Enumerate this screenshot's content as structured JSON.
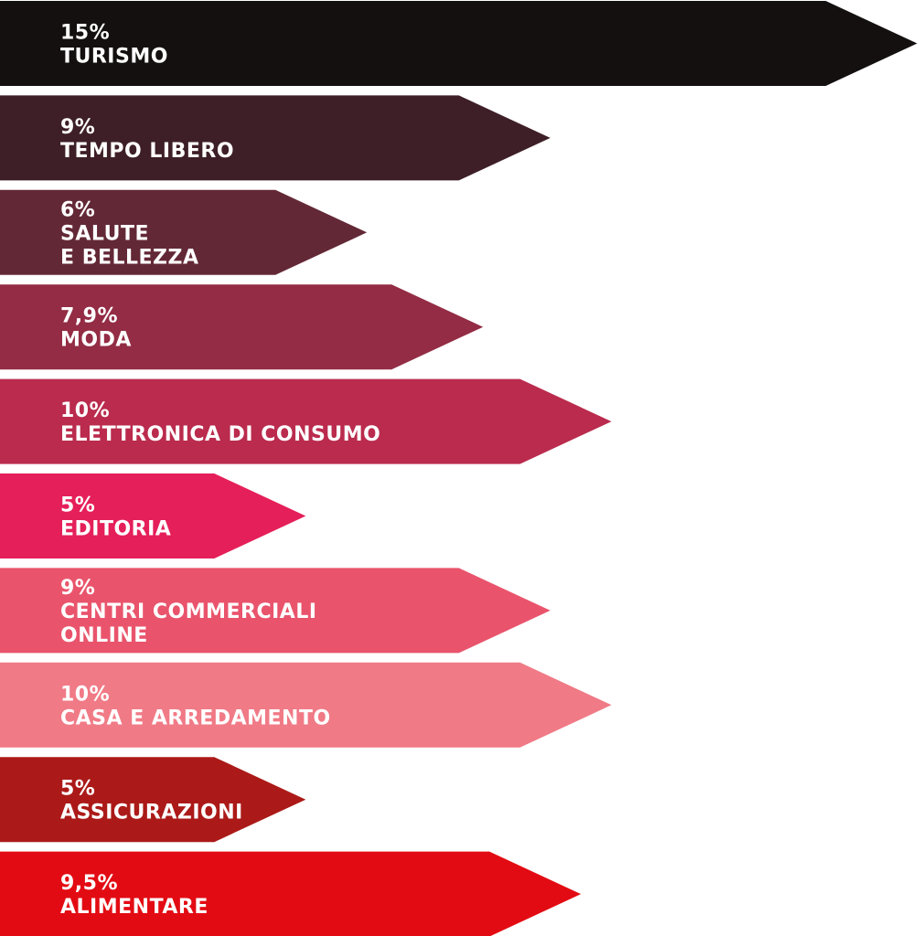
{
  "chart_data": {
    "type": "bar",
    "orientation": "horizontal",
    "categories": [
      "TURISMO",
      "TEMPO LIBERO",
      "SALUTE\nE BELLEZZA",
      "MODA",
      "ELETTRONICA DI CONSUMO",
      "EDITORIA",
      "CENTRI COMMERCIALI\nONLINE",
      "CASA E ARREDAMENTO",
      "ASSICURAZIONI",
      "ALIMENTARE"
    ],
    "values": [
      15,
      9,
      6,
      7.9,
      10,
      5,
      9,
      10,
      5,
      9.5
    ],
    "value_labels": [
      "15%",
      "9%",
      "6%",
      "7,9%",
      "10%",
      "5%",
      "9%",
      "10%",
      "5%",
      "9,5%"
    ],
    "colors": [
      "#141010",
      "#3e1f27",
      "#632836",
      "#932c44",
      "#ba2b4d",
      "#e51f59",
      "#e9546c",
      "#f07a86",
      "#ab1a18",
      "#e30b13"
    ],
    "unit": "%",
    "bar_shape": "arrow",
    "legend": "none",
    "grid": false
  }
}
